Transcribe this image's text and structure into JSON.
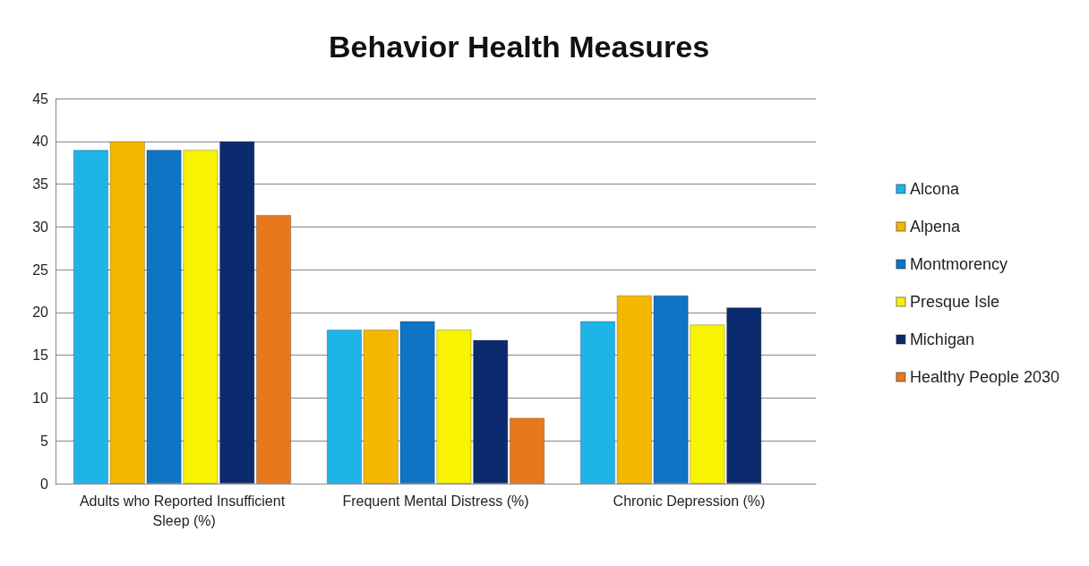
{
  "chart_data": {
    "type": "bar",
    "title": "Behavior Health Measures",
    "categories": [
      "Adults who Reported Insufficient Sleep (%)",
      "Frequent Mental Distress (%)",
      "Chronic Depression (%)"
    ],
    "series": [
      {
        "name": "Alcona",
        "color": "#1fb4e8",
        "values": [
          39,
          18,
          19
        ]
      },
      {
        "name": "Alpena",
        "color": "#f5b800",
        "values": [
          40,
          18,
          22
        ]
      },
      {
        "name": "Montmorency",
        "color": "#0f74c4",
        "values": [
          39,
          19,
          22
        ]
      },
      {
        "name": "Presque Isle",
        "color": "#f8f400",
        "values": [
          39,
          18,
          18.6
        ]
      },
      {
        "name": "Michigan",
        "color": "#0c2a6e",
        "values": [
          40,
          16.8,
          20.6
        ]
      },
      {
        "name": "Healthy People 2030",
        "color": "#e8781e",
        "values": [
          31.4,
          7.7,
          null
        ]
      }
    ],
    "ylim": [
      0,
      45
    ],
    "yticks": [
      0,
      5,
      10,
      15,
      20,
      25,
      30,
      35,
      40,
      45
    ],
    "grid": "y",
    "legend": "right"
  }
}
